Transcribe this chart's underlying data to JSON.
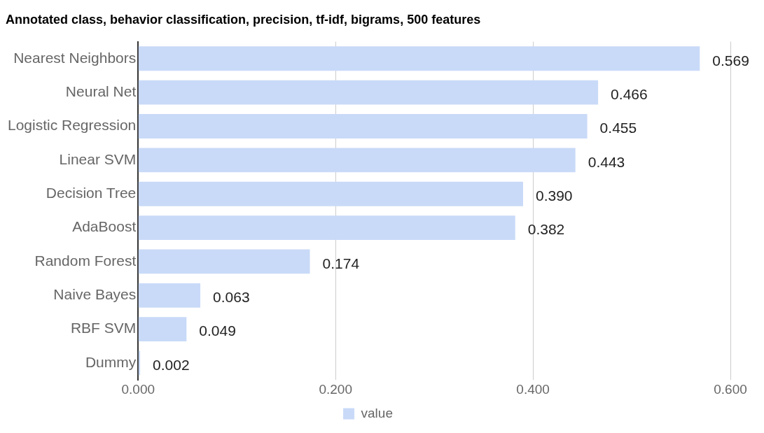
{
  "chart_data": {
    "type": "bar",
    "orientation": "horizontal",
    "title": "Annotated class, behavior classification, precision, tf-idf, bigrams, 500 features",
    "categories": [
      "Nearest Neighbors",
      "Neural Net",
      "Logistic Regression",
      "Linear SVM",
      "Decision Tree",
      "AdaBoost",
      "Random Forest",
      "Naive Bayes",
      "RBF SVM",
      "Dummy"
    ],
    "series": [
      {
        "name": "value",
        "color": "#c9daf8",
        "values": [
          0.569,
          0.466,
          0.455,
          0.443,
          0.39,
          0.382,
          0.174,
          0.063,
          0.049,
          0.002
        ],
        "value_labels": [
          "0.569",
          "0.466",
          "0.455",
          "0.443",
          "0.390",
          "0.382",
          "0.174",
          "0.063",
          "0.049",
          "0.002"
        ]
      }
    ],
    "xlim": [
      0,
      0.6
    ],
    "xticks": [
      {
        "value": 0,
        "label": "0.000"
      },
      {
        "value": 0.2,
        "label": "0.200"
      },
      {
        "value": 0.4,
        "label": "0.400"
      },
      {
        "value": 0.6,
        "label": "0.600"
      }
    ],
    "grid": "x",
    "legend": "bottom"
  }
}
